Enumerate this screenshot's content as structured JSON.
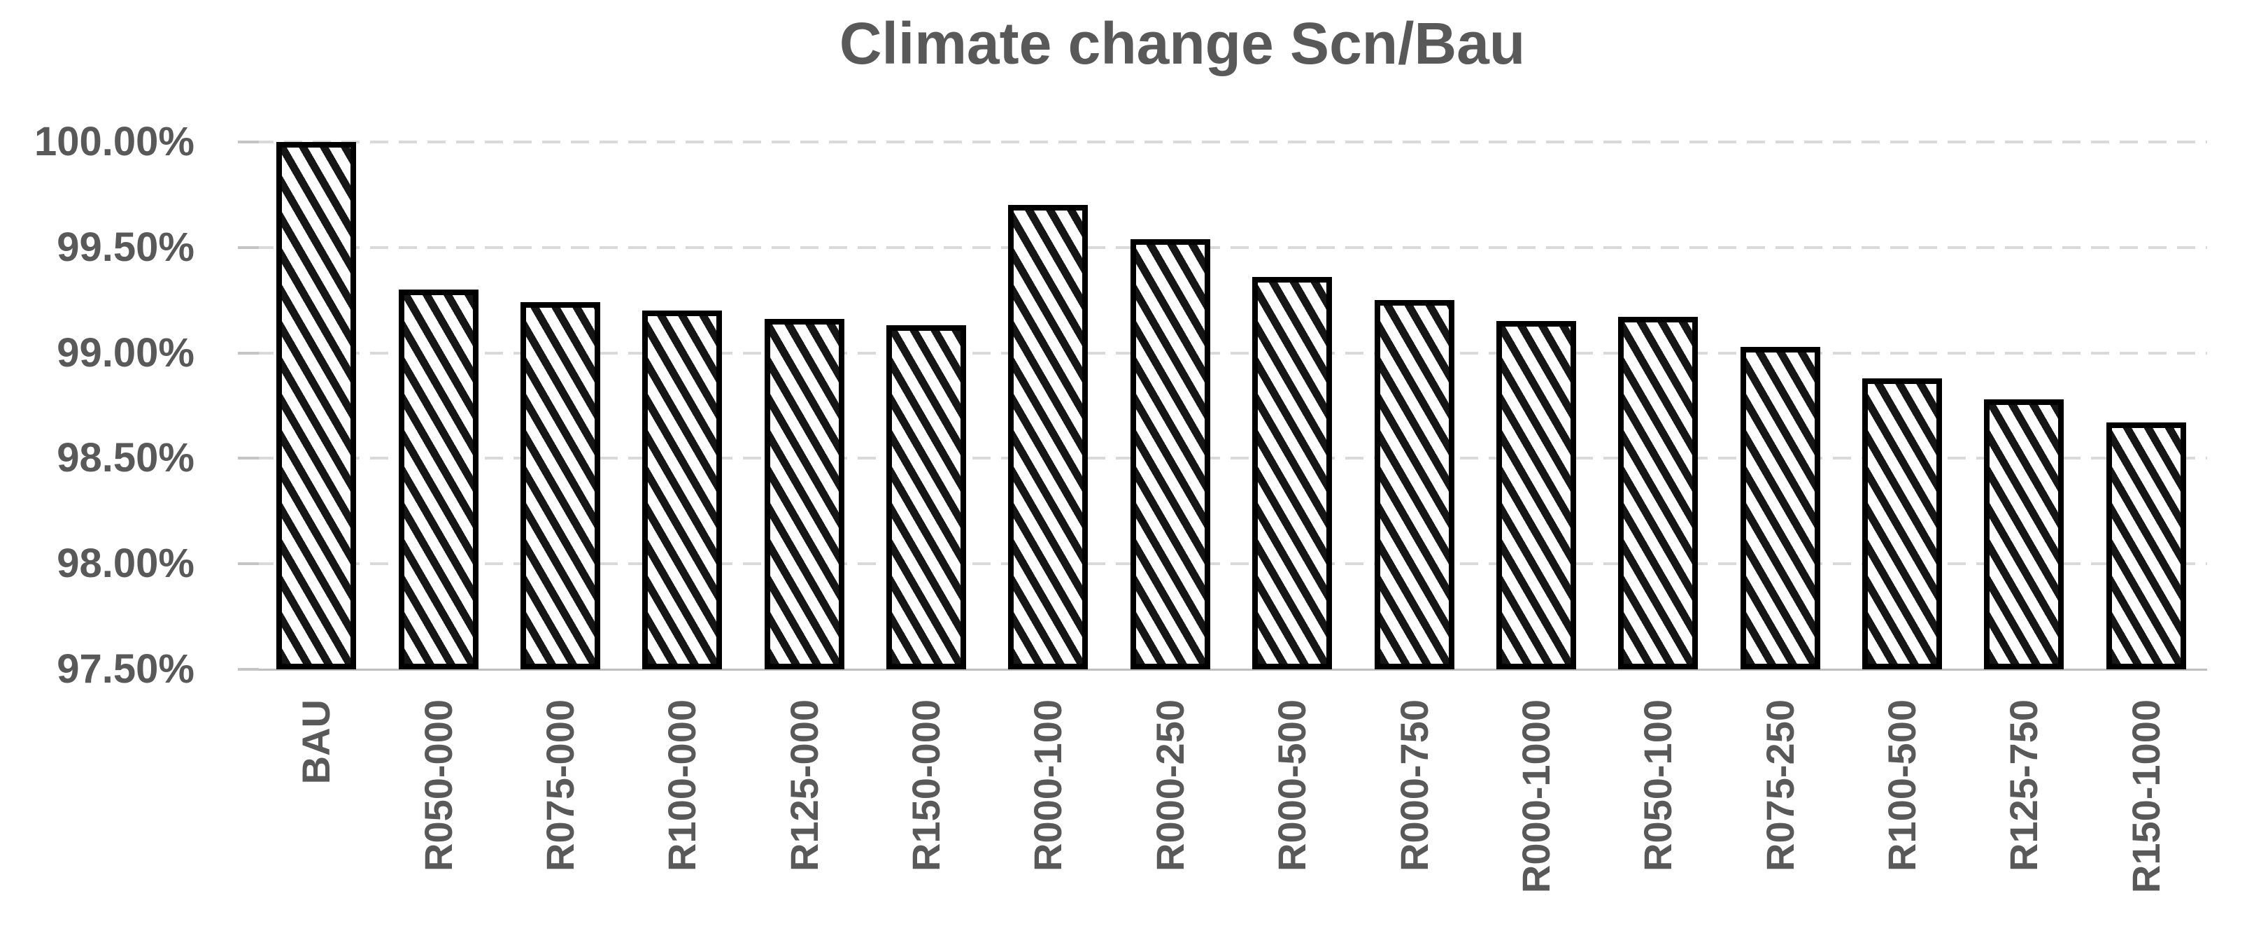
{
  "chart_data": {
    "type": "bar",
    "title": "Climate change Scn/Bau",
    "categories": [
      "BAU",
      "R050-000",
      "R075-000",
      "R100-000",
      "R125-000",
      "R150-000",
      "R000-100",
      "R000-250",
      "R000-500",
      "R000-750",
      "R000-1000",
      "R050-100",
      "R075-250",
      "R100-500",
      "R125-750",
      "R150-1000"
    ],
    "values": [
      100.0,
      99.3,
      99.24,
      99.2,
      99.16,
      99.13,
      99.7,
      99.54,
      99.36,
      99.25,
      99.15,
      99.17,
      99.03,
      98.88,
      98.78,
      98.67
    ],
    "value_unit": "%",
    "xlabel": "",
    "ylabel": "",
    "ylim": [
      97.5,
      100.0
    ],
    "yticks": [
      100.0,
      99.5,
      99.0,
      98.5,
      98.0,
      97.5
    ],
    "ytick_labels": [
      "100.00%",
      "99.50%",
      "99.00%",
      "98.50%",
      "98.00%",
      "97.50%"
    ],
    "grid": "horizontal dashed gridlines, solid bottom axis line",
    "legend_position": "none",
    "bar_style": "white fill with black diagonal hatch stripes, thick black outline",
    "x_label_rotation_deg": 90,
    "colors": {
      "text": "#595959",
      "gridline": "#d9d9d9",
      "axis_line": "#bfbfbf",
      "bar_outline": "#000000",
      "bar_hatch": "#161616",
      "background": "#ffffff"
    }
  }
}
